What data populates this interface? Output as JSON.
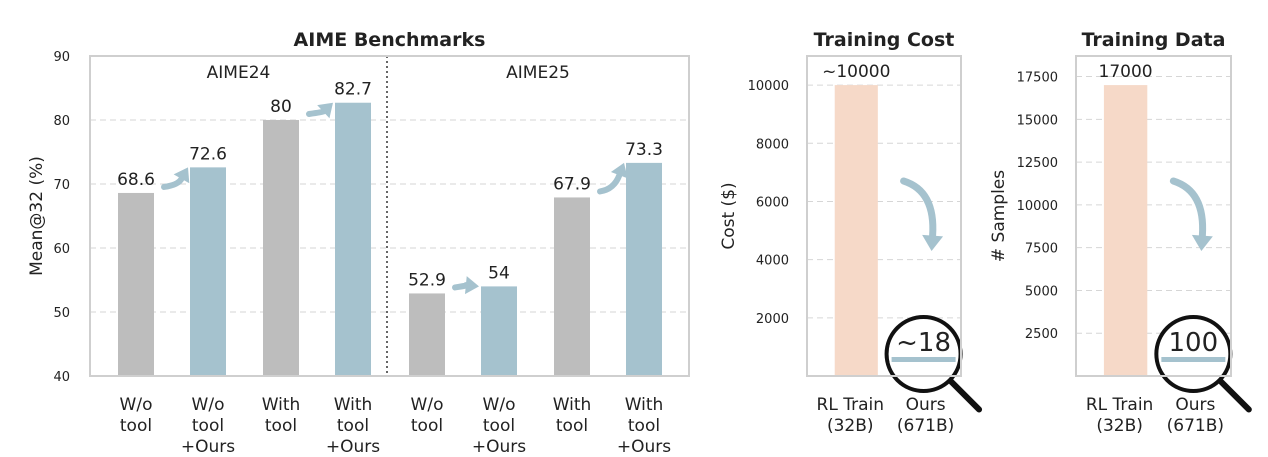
{
  "colors": {
    "baseline": "#bdbdbd",
    "ours": "#a5c2ce",
    "rl_train": "#f6d9c8",
    "arrow": "#a5c2ce"
  },
  "chart_data": [
    {
      "type": "bar",
      "title": "AIME Benchmarks",
      "ylabel": "Mean@32 (%)",
      "ylim": [
        40,
        90
      ],
      "yticks": [
        "40",
        "50",
        "60",
        "70",
        "80",
        "90"
      ],
      "groups": [
        "AIME24",
        "AIME25"
      ],
      "categories": [
        [
          "W/o",
          "tool"
        ],
        [
          "W/o",
          "tool",
          "+Ours"
        ],
        [
          "With",
          "tool"
        ],
        [
          "With",
          "tool",
          "+Ours"
        ],
        [
          "W/o",
          "tool"
        ],
        [
          "W/o",
          "tool",
          "+Ours"
        ],
        [
          "With",
          "tool"
        ],
        [
          "With",
          "tool",
          "+Ours"
        ]
      ],
      "values": [
        68.6,
        72.6,
        80,
        82.7,
        52.9,
        54,
        67.9,
        73.3
      ],
      "value_labels": [
        "68.6",
        "72.6",
        "80",
        "82.7",
        "52.9",
        "54",
        "67.9",
        "73.3"
      ],
      "grid": true
    },
    {
      "type": "bar",
      "title": "Training Cost",
      "ylabel": "Cost ($)",
      "ylim": [
        0,
        11000
      ],
      "yticks": [
        "2000",
        "4000",
        "6000",
        "8000",
        "10000"
      ],
      "categories": [
        [
          "RL Train",
          "(32B)"
        ],
        [
          "Ours",
          "(671B)"
        ]
      ],
      "values": [
        10000,
        18
      ],
      "value_labels": [
        "~10000",
        "~18"
      ],
      "grid": true
    },
    {
      "type": "bar",
      "title": "Training Data",
      "ylabel": "# Samples",
      "ylim": [
        0,
        18700
      ],
      "yticks": [
        "2500",
        "5000",
        "7500",
        "10000",
        "12500",
        "15000",
        "17500"
      ],
      "categories": [
        [
          "RL Train",
          "(32B)"
        ],
        [
          "Ours",
          "(671B)"
        ]
      ],
      "values": [
        17000,
        100
      ],
      "value_labels": [
        "17000",
        "100"
      ],
      "grid": true
    }
  ]
}
